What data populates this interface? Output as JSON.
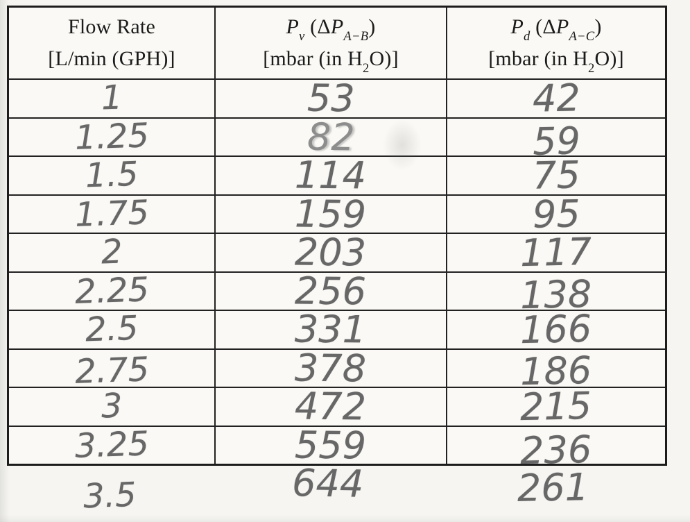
{
  "table": {
    "headers": {
      "flow": {
        "line1": "Flow Rate",
        "line2": "[L/min (GPH)]"
      },
      "pv": {
        "p1": "P",
        "sub1": "v",
        "mid": " (Δ",
        "p2": "P",
        "sub2": "A−B",
        "close": ")",
        "unit_a": "[mbar (in H",
        "unit_sub": "2",
        "unit_b": "O)]"
      },
      "pd": {
        "p1": "P",
        "sub1": "d",
        "mid": " (Δ",
        "p2": "P",
        "sub2": "A−C",
        "close": ")",
        "unit_a": "[mbar (in H",
        "unit_sub": "2",
        "unit_b": "O)]"
      }
    },
    "rows": [
      {
        "flow": "1",
        "pv": "53",
        "pd": "42"
      },
      {
        "flow": "1.25",
        "pv": "82",
        "pd": "59"
      },
      {
        "flow": "1.5",
        "pv": "114",
        "pd": "75"
      },
      {
        "flow": "1.75",
        "pv": "159",
        "pd": "95"
      },
      {
        "flow": "2",
        "pv": "203",
        "pd": "117"
      },
      {
        "flow": "2.25",
        "pv": "256",
        "pd": "138"
      },
      {
        "flow": "2.5",
        "pv": "331",
        "pd": "166"
      },
      {
        "flow": "2.75",
        "pv": "378",
        "pd": "186"
      },
      {
        "flow": "3",
        "pv": "472",
        "pd": "215"
      },
      {
        "flow": "3.25",
        "pv": "559",
        "pd": "236"
      }
    ],
    "overflow_row": {
      "flow": "3.5",
      "pv": "644",
      "pd": "261"
    }
  },
  "colors": {
    "paper": "#f6f5f1",
    "ink": "#1c1c1c",
    "pencil": "#676767",
    "grid_line": "#222222"
  }
}
